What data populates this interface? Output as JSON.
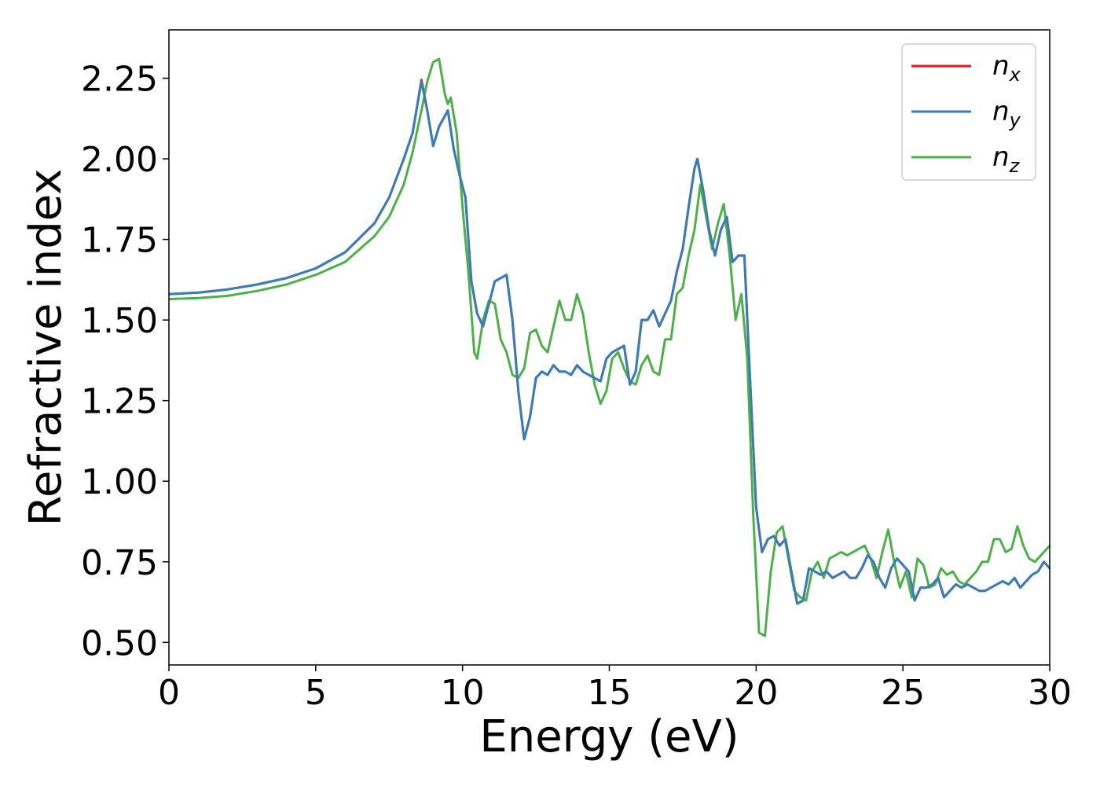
{
  "chart_data": {
    "type": "line",
    "xlabel": "Energy (eV)",
    "ylabel": "Refractive index",
    "xlim": [
      0,
      30
    ],
    "ylim": [
      0.43,
      2.4
    ],
    "x_ticks": [
      "0",
      "5",
      "10",
      "15",
      "20",
      "25",
      "30"
    ],
    "y_ticks": [
      "0.50",
      "0.75",
      "1.00",
      "1.25",
      "1.50",
      "1.75",
      "2.00",
      "2.25"
    ],
    "grid": false,
    "legend_position": "top-right",
    "series": [
      {
        "name": "n",
        "subscript": "x",
        "color": "#e41a1c",
        "x": [
          0,
          1,
          2,
          3,
          4,
          5,
          6,
          7,
          7.5,
          8,
          8.3,
          8.6,
          8.8,
          9.0,
          9.2,
          9.5,
          9.7,
          9.9,
          10.1,
          10.3,
          10.5,
          10.7,
          10.9,
          11.1,
          11.3,
          11.5,
          11.7,
          11.9,
          12.1,
          12.3,
          12.5,
          12.7,
          12.9,
          13.1,
          13.3,
          13.5,
          13.7,
          13.9,
          14.1,
          14.3,
          14.5,
          14.7,
          14.9,
          15.1,
          15.3,
          15.5,
          15.7,
          15.9,
          16.1,
          16.3,
          16.5,
          16.7,
          16.9,
          17.1,
          17.3,
          17.5,
          17.7,
          17.9,
          18.0,
          18.2,
          18.4,
          18.6,
          18.8,
          19.0,
          19.2,
          19.4,
          19.6,
          19.8,
          20.0,
          20.2,
          20.4,
          20.6,
          20.8,
          21.0,
          21.2,
          21.4,
          21.6,
          21.8,
          22.0,
          22.2,
          22.4,
          22.6,
          22.8,
          23.0,
          23.2,
          23.4,
          23.6,
          23.8,
          24.0,
          24.2,
          24.4,
          24.6,
          24.8,
          25.0,
          25.2,
          25.4,
          25.6,
          25.8,
          26.0,
          26.2,
          26.4,
          26.6,
          26.8,
          27.0,
          27.2,
          27.4,
          27.6,
          27.8,
          28.0,
          28.2,
          28.4,
          28.6,
          28.8,
          29.0,
          29.2,
          29.4,
          29.6,
          29.8,
          30.0
        ],
        "values": [
          1.58,
          1.585,
          1.595,
          1.61,
          1.63,
          1.66,
          1.71,
          1.8,
          1.88,
          2.0,
          2.08,
          2.245,
          2.15,
          2.04,
          2.1,
          2.15,
          2.03,
          1.95,
          1.88,
          1.62,
          1.52,
          1.48,
          1.55,
          1.62,
          1.63,
          1.64,
          1.5,
          1.28,
          1.13,
          1.2,
          1.32,
          1.34,
          1.33,
          1.36,
          1.34,
          1.34,
          1.33,
          1.36,
          1.34,
          1.33,
          1.32,
          1.31,
          1.38,
          1.4,
          1.41,
          1.42,
          1.3,
          1.34,
          1.5,
          1.5,
          1.53,
          1.48,
          1.52,
          1.56,
          1.65,
          1.72,
          1.85,
          1.97,
          2.0,
          1.9,
          1.78,
          1.7,
          1.78,
          1.82,
          1.68,
          1.7,
          1.7,
          1.3,
          0.92,
          0.78,
          0.82,
          0.83,
          0.8,
          0.82,
          0.72,
          0.62,
          0.63,
          0.73,
          0.72,
          0.71,
          0.72,
          0.7,
          0.71,
          0.72,
          0.7,
          0.7,
          0.73,
          0.77,
          0.75,
          0.7,
          0.67,
          0.73,
          0.76,
          0.74,
          0.72,
          0.63,
          0.67,
          0.67,
          0.68,
          0.7,
          0.64,
          0.66,
          0.68,
          0.67,
          0.68,
          0.67,
          0.66,
          0.66,
          0.67,
          0.68,
          0.69,
          0.68,
          0.7,
          0.67,
          0.69,
          0.71,
          0.72,
          0.75,
          0.73
        ]
      },
      {
        "name": "n",
        "subscript": "y",
        "color": "#377eb8",
        "x": [
          0,
          1,
          2,
          3,
          4,
          5,
          6,
          7,
          7.5,
          8,
          8.3,
          8.6,
          8.8,
          9.0,
          9.2,
          9.5,
          9.7,
          9.9,
          10.1,
          10.3,
          10.5,
          10.7,
          10.9,
          11.1,
          11.3,
          11.5,
          11.7,
          11.9,
          12.1,
          12.3,
          12.5,
          12.7,
          12.9,
          13.1,
          13.3,
          13.5,
          13.7,
          13.9,
          14.1,
          14.3,
          14.5,
          14.7,
          14.9,
          15.1,
          15.3,
          15.5,
          15.7,
          15.9,
          16.1,
          16.3,
          16.5,
          16.7,
          16.9,
          17.1,
          17.3,
          17.5,
          17.7,
          17.9,
          18.0,
          18.2,
          18.4,
          18.6,
          18.8,
          19.0,
          19.2,
          19.4,
          19.6,
          19.8,
          20.0,
          20.2,
          20.4,
          20.6,
          20.8,
          21.0,
          21.2,
          21.4,
          21.6,
          21.8,
          22.0,
          22.2,
          22.4,
          22.6,
          22.8,
          23.0,
          23.2,
          23.4,
          23.6,
          23.8,
          24.0,
          24.2,
          24.4,
          24.6,
          24.8,
          25.0,
          25.2,
          25.4,
          25.6,
          25.8,
          26.0,
          26.2,
          26.4,
          26.6,
          26.8,
          27.0,
          27.2,
          27.4,
          27.6,
          27.8,
          28.0,
          28.2,
          28.4,
          28.6,
          28.8,
          29.0,
          29.2,
          29.4,
          29.6,
          29.8,
          30.0
        ],
        "values": [
          1.58,
          1.585,
          1.595,
          1.61,
          1.63,
          1.66,
          1.71,
          1.8,
          1.88,
          2.0,
          2.08,
          2.24,
          2.15,
          2.04,
          2.1,
          2.15,
          2.03,
          1.95,
          1.88,
          1.62,
          1.52,
          1.48,
          1.55,
          1.62,
          1.63,
          1.64,
          1.5,
          1.28,
          1.13,
          1.2,
          1.32,
          1.34,
          1.33,
          1.36,
          1.34,
          1.34,
          1.33,
          1.36,
          1.34,
          1.33,
          1.32,
          1.31,
          1.38,
          1.4,
          1.41,
          1.42,
          1.3,
          1.34,
          1.5,
          1.5,
          1.53,
          1.48,
          1.52,
          1.56,
          1.65,
          1.72,
          1.85,
          1.97,
          2.0,
          1.9,
          1.78,
          1.7,
          1.78,
          1.82,
          1.68,
          1.7,
          1.7,
          1.3,
          0.92,
          0.78,
          0.82,
          0.83,
          0.8,
          0.82,
          0.72,
          0.62,
          0.63,
          0.73,
          0.72,
          0.71,
          0.72,
          0.7,
          0.71,
          0.72,
          0.7,
          0.7,
          0.73,
          0.77,
          0.75,
          0.7,
          0.67,
          0.73,
          0.76,
          0.74,
          0.72,
          0.63,
          0.67,
          0.67,
          0.68,
          0.7,
          0.64,
          0.66,
          0.68,
          0.67,
          0.68,
          0.67,
          0.66,
          0.66,
          0.67,
          0.68,
          0.69,
          0.68,
          0.7,
          0.67,
          0.69,
          0.71,
          0.72,
          0.75,
          0.73
        ]
      },
      {
        "name": "n",
        "subscript": "z",
        "color": "#4daf4a",
        "x": [
          0,
          1,
          2,
          3,
          4,
          5,
          6,
          7,
          7.5,
          8,
          8.3,
          8.6,
          8.8,
          9.0,
          9.2,
          9.4,
          9.5,
          9.6,
          9.8,
          10.0,
          10.2,
          10.4,
          10.5,
          10.7,
          10.9,
          11.1,
          11.3,
          11.5,
          11.7,
          11.9,
          12.1,
          12.3,
          12.5,
          12.7,
          12.9,
          13.1,
          13.3,
          13.5,
          13.7,
          13.9,
          14.1,
          14.3,
          14.5,
          14.7,
          14.9,
          15.1,
          15.3,
          15.5,
          15.7,
          15.9,
          16.1,
          16.3,
          16.5,
          16.7,
          16.9,
          17.1,
          17.3,
          17.5,
          17.7,
          17.9,
          18.1,
          18.3,
          18.5,
          18.7,
          18.9,
          19.1,
          19.3,
          19.5,
          19.7,
          19.9,
          20.1,
          20.3,
          20.5,
          20.7,
          20.9,
          21.1,
          21.3,
          21.5,
          21.7,
          21.9,
          22.1,
          22.3,
          22.5,
          22.7,
          22.9,
          23.1,
          23.3,
          23.5,
          23.7,
          23.9,
          24.1,
          24.3,
          24.5,
          24.7,
          24.9,
          25.1,
          25.3,
          25.5,
          25.7,
          25.9,
          26.1,
          26.3,
          26.5,
          26.7,
          26.9,
          27.1,
          27.3,
          27.5,
          27.7,
          27.9,
          28.1,
          28.3,
          28.5,
          28.7,
          28.9,
          29.1,
          29.3,
          29.5,
          29.7,
          30.0
        ],
        "values": [
          1.565,
          1.568,
          1.575,
          1.59,
          1.61,
          1.64,
          1.68,
          1.76,
          1.82,
          1.92,
          2.02,
          2.15,
          2.24,
          2.3,
          2.31,
          2.2,
          2.17,
          2.19,
          2.08,
          1.85,
          1.65,
          1.4,
          1.38,
          1.5,
          1.56,
          1.55,
          1.44,
          1.4,
          1.33,
          1.32,
          1.35,
          1.46,
          1.47,
          1.42,
          1.4,
          1.48,
          1.56,
          1.5,
          1.5,
          1.58,
          1.52,
          1.4,
          1.3,
          1.24,
          1.28,
          1.38,
          1.4,
          1.35,
          1.31,
          1.3,
          1.36,
          1.39,
          1.34,
          1.33,
          1.44,
          1.44,
          1.58,
          1.6,
          1.7,
          1.78,
          1.92,
          1.82,
          1.72,
          1.8,
          1.86,
          1.7,
          1.5,
          1.58,
          1.38,
          0.9,
          0.53,
          0.52,
          0.72,
          0.84,
          0.86,
          0.76,
          0.66,
          0.64,
          0.63,
          0.72,
          0.75,
          0.7,
          0.76,
          0.77,
          0.78,
          0.77,
          0.78,
          0.79,
          0.8,
          0.76,
          0.7,
          0.78,
          0.85,
          0.75,
          0.67,
          0.72,
          0.64,
          0.76,
          0.74,
          0.67,
          0.68,
          0.73,
          0.71,
          0.72,
          0.69,
          0.68,
          0.7,
          0.72,
          0.75,
          0.75,
          0.82,
          0.82,
          0.78,
          0.79,
          0.86,
          0.8,
          0.76,
          0.75,
          0.77,
          0.8
        ]
      }
    ]
  }
}
